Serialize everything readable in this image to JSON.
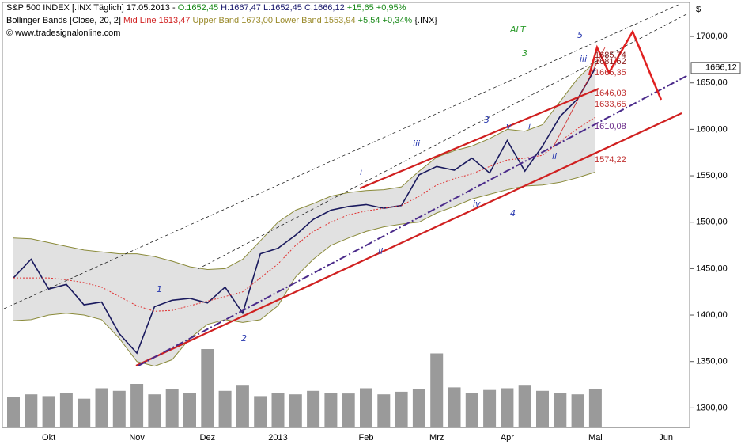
{
  "chart_data": {
    "type": "line",
    "header": {
      "symbol": "S&P 500 INDEX [.INX  Täglich]",
      "date": "17.05.2013 -",
      "open": "O:1652,45",
      "high": "H:1667,47",
      "low": "L:1652,45",
      "close": "C:1666,12",
      "change": "+15,65 +0,95%",
      "indicator": "Bollinger Bands [Close, 20, 2]",
      "mid": "Mid Line 1613,47",
      "upper": "Upper Band 1673,00",
      "lower": "Lower Band 1553,94",
      "ind_change": "+5,54 +0,34%",
      "ind_symbol": "{.INX}",
      "copyright": "© www.tradesignalonline.com"
    },
    "currency": "$",
    "last_price": {
      "value": 1666.12,
      "label": "1666,12"
    },
    "categories": [
      null,
      null,
      "Okt",
      null,
      null,
      null,
      null,
      "Nov",
      null,
      null,
      null,
      "Dez",
      null,
      null,
      null,
      "2013",
      null,
      null,
      null,
      null,
      "Feb",
      null,
      null,
      null,
      "Mrz",
      null,
      null,
      null,
      "Apr",
      null,
      null,
      null,
      null,
      "Mai",
      null,
      null,
      null,
      "Jun",
      null
    ],
    "series": [
      {
        "name": "Close",
        "color": "#1a1a5e",
        "values": [
          1440,
          1460,
          1428,
          1433,
          1411,
          1414,
          1380,
          1359,
          1409,
          1416,
          1418,
          1413,
          1430,
          1402,
          1466,
          1472,
          1486,
          1503,
          1513,
          1517,
          1519,
          1515,
          1518,
          1551,
          1560,
          1556,
          1569,
          1553,
          1588,
          1555,
          1582,
          1614,
          1633,
          1666,
          null,
          null,
          null,
          null,
          null
        ]
      },
      {
        "name": "Upper Band",
        "color": "#8a8a3a",
        "values": [
          1483,
          1482,
          1478,
          1474,
          1470,
          1468,
          1466,
          1466,
          1463,
          1458,
          1452,
          1449,
          1450,
          1460,
          1480,
          1500,
          1513,
          1520,
          1528,
          1532,
          1534,
          1535,
          1538,
          1555,
          1570,
          1577,
          1582,
          1590,
          1600,
          1598,
          1605,
          1630,
          1655,
          1673,
          null,
          null,
          null,
          null,
          null
        ]
      },
      {
        "name": "Lower Band",
        "color": "#8a8a3a",
        "values": [
          1394,
          1395,
          1400,
          1402,
          1400,
          1395,
          1375,
          1350,
          1345,
          1352,
          1375,
          1390,
          1395,
          1392,
          1395,
          1410,
          1441,
          1460,
          1475,
          1483,
          1490,
          1495,
          1498,
          1500,
          1510,
          1517,
          1525,
          1530,
          1535,
          1539,
          1540,
          1543,
          1548,
          1554,
          null,
          null,
          null,
          null,
          null
        ]
      },
      {
        "name": "Mid Line",
        "color": "#e03030",
        "values": [
          1440,
          1440,
          1440,
          1438,
          1435,
          1430,
          1420,
          1410,
          1404,
          1405,
          1410,
          1415,
          1420,
          1425,
          1440,
          1455,
          1475,
          1490,
          1500,
          1508,
          1512,
          1515,
          1518,
          1528,
          1540,
          1547,
          1552,
          1560,
          1567,
          1569,
          1572,
          1587,
          1601,
          1613,
          null,
          null,
          null,
          null,
          null
        ]
      },
      {
        "name": "Volume",
        "color": "#9a9a9a",
        "axis": "y2",
        "values": [
          35,
          38,
          36,
          40,
          33,
          45,
          42,
          50,
          38,
          44,
          40,
          90,
          42,
          48,
          36,
          40,
          38,
          42,
          40,
          39,
          45,
          38,
          41,
          44,
          85,
          46,
          40,
          43,
          45,
          48,
          42,
          40,
          38,
          44,
          null,
          null,
          null,
          null,
          null
        ]
      }
    ],
    "ylim": [
      1279,
      1735
    ],
    "yticks": [
      {
        "value": 1300,
        "label": "1300,00"
      },
      {
        "value": 1350,
        "label": "1350,00"
      },
      {
        "value": 1400,
        "label": "1400,00"
      },
      {
        "value": 1450,
        "label": "1450,00"
      },
      {
        "value": 1500,
        "label": "1500,00"
      },
      {
        "value": 1550,
        "label": "1550,00"
      },
      {
        "value": 1600,
        "label": "1600,00"
      },
      {
        "value": 1650,
        "label": "1650,00"
      },
      {
        "value": 1700,
        "label": "1700,00"
      }
    ],
    "y2lim": [
      0,
      100
    ],
    "annotations": [
      {
        "text": "ALT",
        "color": "#2a9a2a"
      },
      {
        "text": "3",
        "color": "#2a9a2a"
      },
      {
        "text": "5",
        "color": "#2a3ab0"
      },
      {
        "text": "1",
        "color": "#2a3ab0"
      },
      {
        "text": "2",
        "color": "#2a3ab0"
      },
      {
        "text": "3",
        "color": "#2a3ab0"
      },
      {
        "text": "4",
        "color": "#2a3ab0"
      },
      {
        "text": "i",
        "color": "#2a3ab0"
      },
      {
        "text": "ii",
        "color": "#2a3ab0"
      },
      {
        "text": "iii",
        "color": "#2a3ab0"
      },
      {
        "text": "iv",
        "color": "#2a3ab0"
      },
      {
        "text": "v",
        "color": "#2a3ab0"
      },
      {
        "text": "i",
        "color": "#2a3ab0"
      },
      {
        "text": "ii",
        "color": "#2a3ab0"
      },
      {
        "text": "iii",
        "color": "#2a3ab0"
      },
      {
        "text": "1685,74",
        "color": "#8b1a1a"
      },
      {
        "text": "1681,62",
        "color": "#8b1a1a"
      },
      {
        "text": "1666,35",
        "color": "#c03030"
      },
      {
        "text": "1646,03",
        "color": "#c03030"
      },
      {
        "text": "1633,65",
        "color": "#c03030"
      },
      {
        "text": "1610,08",
        "color": "#6a2a8a"
      },
      {
        "text": "1574,22",
        "color": "#c03030"
      }
    ]
  }
}
